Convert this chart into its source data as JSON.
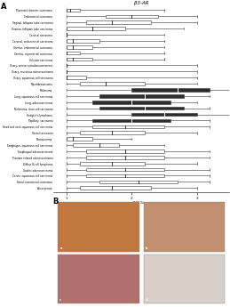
{
  "title": "β3-AR",
  "xlabel": "IHC Score",
  "panel_a_label": "A",
  "panel_b_label": "B",
  "categories": [
    "Placental chorionic carcinoma",
    "Endometrial carcinoma",
    "Vaginal, fallopian tube carcinoma",
    "Ovarian, fallopian tube carcinoma",
    "Cervical carcinoma",
    "Cervical, endocervical carcinoma",
    "Uterine, endometrial carcinoma",
    "Uterine, myometrial carcinoma",
    "Vulvular carcinoma",
    "Ovary, serous cystadenocarcinoma",
    "Ovary, mucinous adenocarcinoma",
    "Ovary, squamous cell carcinoma",
    "Myxofibrosarcoma",
    "Melanoma",
    "Lung, squamous cell carcinoma",
    "Lung, adenocarcinoma",
    "Melanoma, clear cell carcinoma",
    "Hodgkin's lymphoma",
    "Papillary, carcinoma",
    "Head and neck squamous cell carcinoma",
    "Rectal carcinoma",
    "Fibrosarcoma",
    "Esophagus, squamous cell carcinoma",
    "Esophageal adenocarcinoma",
    "Prostate related adenocarcinoma",
    "Diffuse B-cell lymphoma",
    "Gastric adenocarcinoma",
    "Cervix, squamous cell carcinoma",
    "Renal, transitional carcinoma",
    "Astrocytoma"
  ],
  "box_data": [
    [
      1.0,
      1.0,
      1.05,
      1.2,
      2.5
    ],
    [
      1.0,
      1.6,
      2.0,
      2.4,
      3.0
    ],
    [
      1.0,
      1.3,
      1.7,
      2.3,
      3.0
    ],
    [
      1.0,
      1.0,
      1.4,
      1.9,
      2.8
    ],
    [
      1.0,
      1.0,
      1.0,
      1.0,
      2.5
    ],
    [
      1.0,
      1.0,
      1.1,
      1.5,
      2.5
    ],
    [
      1.0,
      1.0,
      1.1,
      1.4,
      2.5
    ],
    [
      1.0,
      1.0,
      1.0,
      1.2,
      2.5
    ],
    [
      1.0,
      1.0,
      1.1,
      1.4,
      2.5
    ],
    [
      1.0,
      1.0,
      1.0,
      1.0,
      3.0
    ],
    [
      1.0,
      1.0,
      1.0,
      1.0,
      3.0
    ],
    [
      1.0,
      1.0,
      1.0,
      1.3,
      3.0
    ],
    [
      1.0,
      1.2,
      1.6,
      2.2,
      3.0
    ],
    [
      1.0,
      2.0,
      2.7,
      3.2,
      3.8
    ],
    [
      1.0,
      1.5,
      2.2,
      2.8,
      3.2
    ],
    [
      1.0,
      1.4,
      2.0,
      2.6,
      3.0
    ],
    [
      1.0,
      1.5,
      2.2,
      2.8,
      3.2
    ],
    [
      1.0,
      2.0,
      2.5,
      3.0,
      3.8
    ],
    [
      1.0,
      1.4,
      2.0,
      2.6,
      3.2
    ],
    [
      1.0,
      1.4,
      1.9,
      2.5,
      3.2
    ],
    [
      1.0,
      1.2,
      1.7,
      2.2,
      3.0
    ],
    [
      1.0,
      1.0,
      1.1,
      1.4,
      2.0
    ],
    [
      1.0,
      1.1,
      1.5,
      1.8,
      2.5
    ],
    [
      1.0,
      1.3,
      1.9,
      2.5,
      3.2
    ],
    [
      1.0,
      1.3,
      1.9,
      2.5,
      3.2
    ],
    [
      1.0,
      1.2,
      1.7,
      2.2,
      3.0
    ],
    [
      1.0,
      1.3,
      1.9,
      2.5,
      3.2
    ],
    [
      1.0,
      1.3,
      1.9,
      2.5,
      3.2
    ],
    [
      1.0,
      1.5,
      2.1,
      2.7,
      3.2
    ],
    [
      1.0,
      1.2,
      1.7,
      2.3,
      3.0
    ]
  ],
  "dark_boxes": [
    13,
    14,
    15,
    16,
    17,
    18
  ],
  "xlim": [
    0.8,
    3.5
  ],
  "xticks": [
    1,
    2,
    3
  ],
  "xtick_labels": [
    "1",
    "2",
    "3"
  ],
  "bg_color": "#ffffff",
  "box_color_light": "#ffffff",
  "box_color_dark": "#2c2c2c",
  "whisker_color": "#333333",
  "median_color_light": "#333333",
  "median_color_dark": "#ffffff",
  "img_colors_tl": "#c07840",
  "img_colors_tr": "#c09070",
  "img_colors_bl": "#b07070",
  "img_colors_br": "#d8cfc8"
}
